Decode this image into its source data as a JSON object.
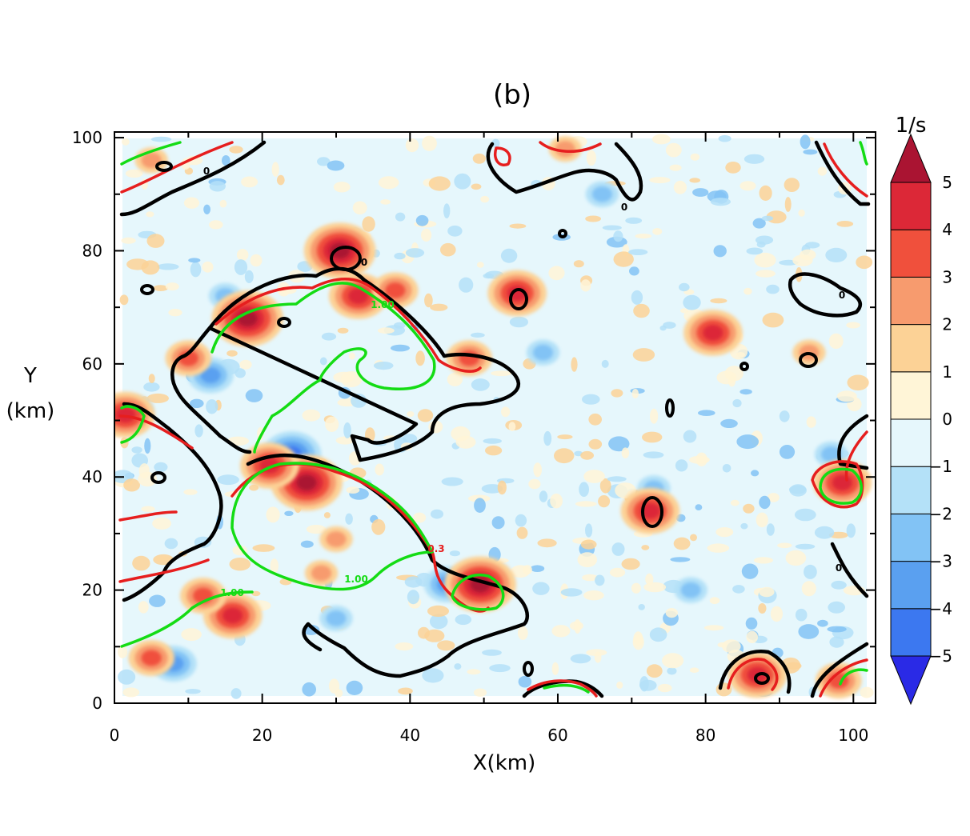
{
  "chart_data": {
    "type": "heatmap",
    "title": "(b)",
    "xlabel": "X(km)",
    "ylabel_line1": "Y",
    "ylabel_line2": "(km)",
    "xlim": [
      0,
      103
    ],
    "ylim": [
      0,
      101
    ],
    "xticks": [
      0,
      20,
      40,
      60,
      80,
      100
    ],
    "yticks": [
      0,
      20,
      40,
      60,
      80,
      100
    ],
    "colorbar": {
      "units": "1/s",
      "levels": [
        -5,
        -4,
        -3,
        -2,
        -1,
        0,
        1,
        2,
        3,
        4,
        5
      ],
      "tick_labels": [
        "−5",
        "−4",
        "−3",
        "−2",
        "−1",
        "0",
        "1",
        "2",
        "3",
        "4",
        "5"
      ],
      "colors": [
        "#2a2ae6",
        "#3c78f0",
        "#5aa0f0",
        "#82c3f5",
        "#b4e1f8",
        "#e6f7fc",
        "#fff5d7",
        "#fcd296",
        "#f79b6e",
        "#f0503c",
        "#dc2837",
        "#aa1432"
      ],
      "extend": "both"
    },
    "contours": {
      "black_color": "#000000",
      "red_color": "#e61e1e",
      "green_color": "#14dc14",
      "labels": [
        "0",
        "0",
        "0",
        "0",
        "0",
        "1.00",
        "1.00",
        "1.00",
        "0.3"
      ]
    },
    "maxima": [
      {
        "x": 18,
        "y": 68,
        "v": 5
      },
      {
        "x": 30.5,
        "y": 80,
        "v": 5
      },
      {
        "x": 26,
        "y": 39,
        "v": 5
      },
      {
        "x": 49.5,
        "y": 21,
        "v": 5
      },
      {
        "x": 16,
        "y": 15.5,
        "v": 4
      },
      {
        "x": 21,
        "y": 42,
        "v": 4
      },
      {
        "x": 33,
        "y": 72,
        "v": 4
      },
      {
        "x": 1.5,
        "y": 51,
        "v": 4
      },
      {
        "x": 98.5,
        "y": 39,
        "v": 4
      },
      {
        "x": 54.5,
        "y": 72.5,
        "v": 4
      },
      {
        "x": 72.5,
        "y": 34,
        "v": 4
      },
      {
        "x": 81,
        "y": 65.5,
        "v": 4
      },
      {
        "x": 87,
        "y": 5,
        "v": 4
      },
      {
        "x": 98,
        "y": 4,
        "v": 3
      },
      {
        "x": 12,
        "y": 19,
        "v": 3
      },
      {
        "x": 5,
        "y": 8,
        "v": 3
      },
      {
        "x": 28,
        "y": 23,
        "v": 2
      },
      {
        "x": 48,
        "y": 61,
        "v": 3
      },
      {
        "x": 10,
        "y": 61,
        "v": 3
      },
      {
        "x": 38,
        "y": 73,
        "v": 3
      },
      {
        "x": 61,
        "y": 98,
        "v": 2
      },
      {
        "x": 94,
        "y": 62,
        "v": 2
      },
      {
        "x": 30,
        "y": 29,
        "v": 2
      },
      {
        "x": 5,
        "y": 96,
        "v": 2
      }
    ],
    "minima": [
      {
        "x": 24,
        "y": 44,
        "v": -4
      },
      {
        "x": 13,
        "y": 58,
        "v": -3
      },
      {
        "x": 8,
        "y": 7,
        "v": -3
      },
      {
        "x": 45,
        "y": 21,
        "v": -3
      },
      {
        "x": 30,
        "y": 15,
        "v": -2
      },
      {
        "x": 3,
        "y": 52,
        "v": -2
      },
      {
        "x": 97,
        "y": 44,
        "v": -2
      },
      {
        "x": 73,
        "y": 38,
        "v": -2
      },
      {
        "x": 78,
        "y": 20,
        "v": -2
      },
      {
        "x": 15,
        "y": 72,
        "v": -2
      },
      {
        "x": 58,
        "y": 62,
        "v": -2
      },
      {
        "x": 66,
        "y": 90,
        "v": -2
      }
    ]
  }
}
